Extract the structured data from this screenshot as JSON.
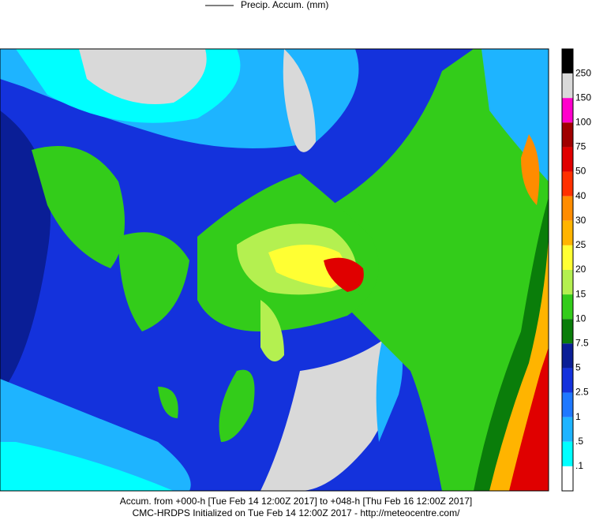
{
  "header": {
    "legend_label": "Precip. Accum. (mm)"
  },
  "colorbar": {
    "colors": [
      "#000000",
      "#d9d9d9",
      "#ff00cc",
      "#a00000",
      "#e00000",
      "#ff3000",
      "#ff8c00",
      "#ffb400",
      "#ffff33",
      "#b4f050",
      "#33cc1a",
      "#0a7d0a",
      "#0a1e96",
      "#1432dc",
      "#1e78ff",
      "#1eb4ff",
      "#00ffff",
      "#ffffff"
    ],
    "labels": [
      "250",
      "150",
      "100",
      "75",
      "50",
      "40",
      "30",
      "25",
      "20",
      "15",
      "10",
      "7.5",
      "5",
      "2.5",
      "1",
      ".5",
      ".1"
    ]
  },
  "footer": {
    "line1": "Accum. from +000-h [Tue Feb 14 12:00Z 2017] to +048-h [Thu Feb 16 12:00Z 2017]",
    "line2": "CMC-HRDPS Initialized on Tue Feb 14 12:00Z 2017 - http://meteocentre.com/"
  }
}
